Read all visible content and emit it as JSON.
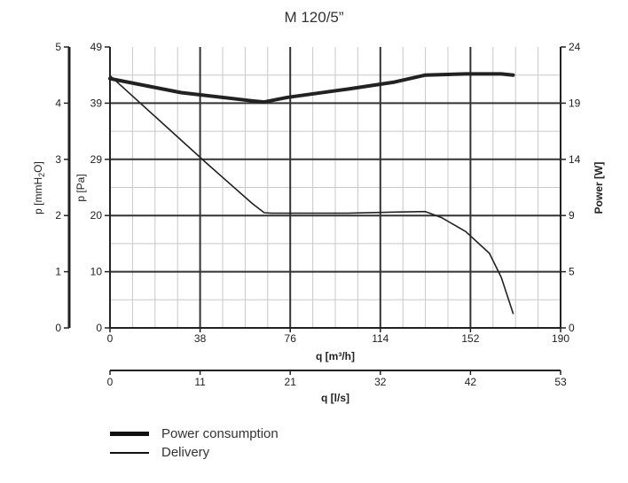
{
  "chart_data": {
    "type": "line",
    "title": "M 120/5”",
    "x_primary": {
      "label": "q [m³/h]",
      "range": [
        0,
        190
      ],
      "ticks": [
        0,
        38,
        76,
        114,
        152,
        190
      ],
      "tick_labels": [
        "0",
        "38",
        "76",
        "114",
        "152",
        "190"
      ]
    },
    "x_secondary": {
      "label": "q [l/s]",
      "range": [
        0,
        53
      ],
      "ticks": [
        0,
        11,
        21,
        32,
        42,
        53
      ],
      "tick_labels": [
        "0",
        "11",
        "21",
        "32",
        "42",
        "53"
      ]
    },
    "y_pa": {
      "label": "p [Pa]",
      "range": [
        0,
        49
      ],
      "tick_labels": [
        "0",
        "10",
        "20",
        "29",
        "39",
        "49"
      ]
    },
    "y_mmh2o": {
      "label_prefix": "p [mmH",
      "label_sub": "2",
      "label_suffix": "O]",
      "range": [
        0,
        5
      ],
      "tick_labels": [
        "0",
        "1",
        "2",
        "3",
        "4",
        "5"
      ]
    },
    "y_power": {
      "label": "Power [W]",
      "range": [
        0,
        24
      ],
      "tick_labels": [
        "0",
        "5",
        "9",
        "14",
        "19",
        "24"
      ]
    },
    "series": [
      {
        "name": "Power consumption",
        "axis": "power",
        "style": "thick",
        "x": [
          0,
          30,
          60,
          65,
          75,
          100,
          120,
          133,
          150,
          165,
          170
        ],
        "y": [
          21.3,
          20.1,
          19.4,
          19.3,
          19.7,
          20.4,
          21.0,
          21.6,
          21.7,
          21.7,
          21.6
        ]
      },
      {
        "name": "Delivery",
        "axis": "pa",
        "style": "thin",
        "x": [
          0,
          20,
          40,
          60,
          65,
          68,
          80,
          100,
          120,
          133,
          140,
          150,
          160,
          165,
          170
        ],
        "y": [
          44.0,
          36.5,
          29.0,
          21.7,
          20.1,
          20.0,
          20.0,
          20.0,
          20.2,
          20.3,
          19.2,
          16.8,
          13.0,
          8.8,
          2.5
        ]
      }
    ]
  },
  "legend": {
    "items": [
      {
        "label": "Power consumption"
      },
      {
        "label": "Delivery"
      }
    ]
  },
  "colors": {
    "grid": "#c8c8c8",
    "major": "#333333",
    "line": "#222222"
  }
}
